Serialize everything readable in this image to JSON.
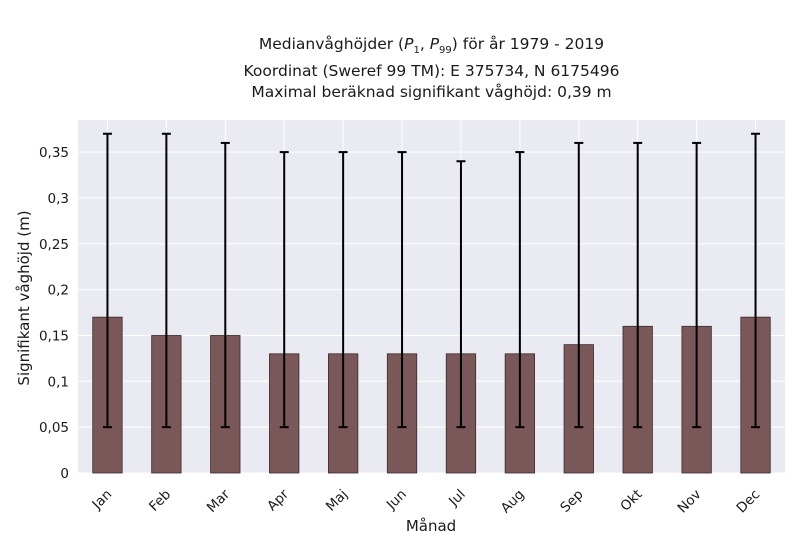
{
  "chart_data": {
    "type": "bar",
    "title_lines": [
      "Medianvåghöjder (P1, P99) för år 1979 - 2019",
      "Koordinat (Sweref 99 TM): E 375734, N 6175496",
      "Maximal beräknad signifikant våghöjd: 0,39 m"
    ],
    "title_line1": {
      "prefix": "Medianvåghöjder (",
      "p": "P",
      "sub1": "1",
      "sep": ", ",
      "sub2": "99",
      "suffix": ") för år 1979 - 2019"
    },
    "xlabel": "Månad",
    "ylabel": "Signifikant våghöjd (m)",
    "categories": [
      "Jan",
      "Feb",
      "Mar",
      "Apr",
      "Maj",
      "Jun",
      "Jul",
      "Aug",
      "Sep",
      "Okt",
      "Nov",
      "Dec"
    ],
    "series": [
      {
        "values": [
          0.17,
          0.15,
          0.15,
          0.13,
          0.13,
          0.13,
          0.13,
          0.13,
          0.14,
          0.16,
          0.16,
          0.17
        ],
        "p1": [
          0.05,
          0.05,
          0.05,
          0.05,
          0.05,
          0.05,
          0.05,
          0.05,
          0.05,
          0.05,
          0.05,
          0.05
        ],
        "p99": [
          0.37,
          0.37,
          0.36,
          0.35,
          0.35,
          0.35,
          0.34,
          0.35,
          0.36,
          0.36,
          0.36,
          0.37
        ]
      }
    ],
    "ylim": [
      0,
      0.385
    ],
    "yticks": [
      0,
      0.05,
      0.1,
      0.15,
      0.2,
      0.25,
      0.3,
      0.35
    ],
    "ytick_labels": [
      "0",
      "0,05",
      "0,1",
      "0,15",
      "0,2",
      "0,25",
      "0,3",
      "0,35"
    ],
    "grid": true,
    "colors": {
      "bar": "#7a5758",
      "bar_edge": "#3d2b2c",
      "background": "#eaeaf2",
      "grid": "#ffffff",
      "errorbar": "#000000"
    }
  }
}
